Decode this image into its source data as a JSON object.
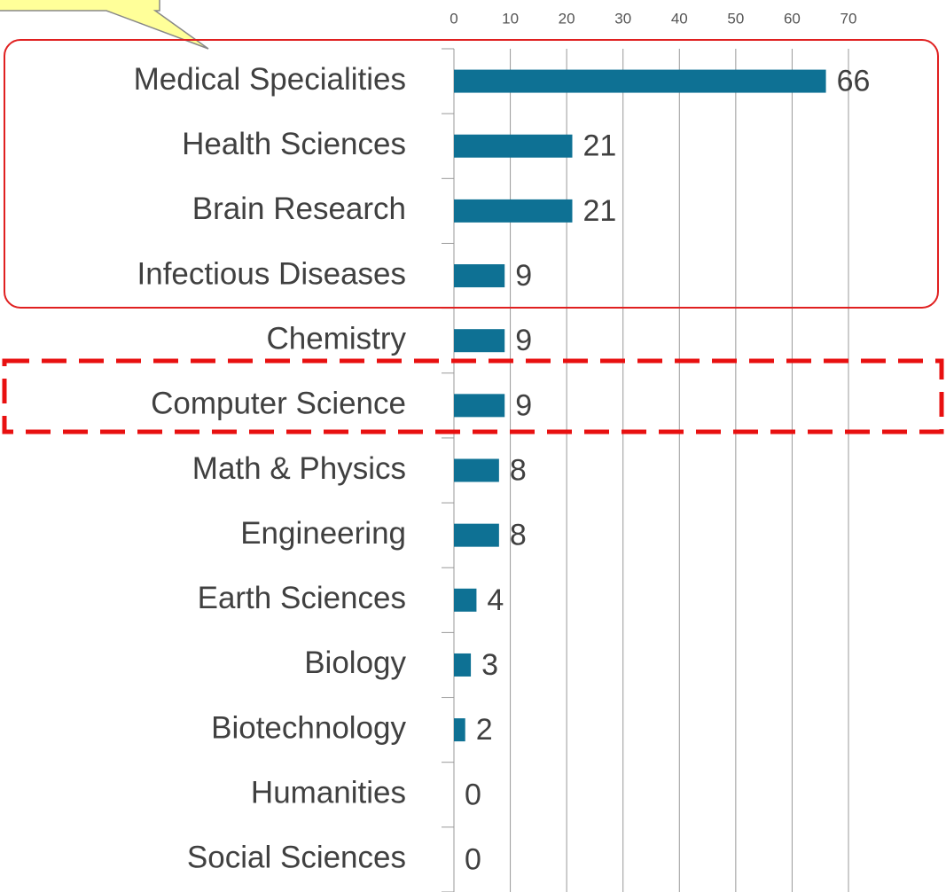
{
  "chart_data": {
    "type": "bar",
    "orientation": "horizontal",
    "categories": [
      "Medical Specialities",
      "Health Sciences",
      "Brain Research",
      "Infectious Diseases",
      "Chemistry",
      "Computer Science",
      "Math & Physics",
      "Engineering",
      "Earth Sciences",
      "Biology",
      "Biotechnology",
      "Humanities",
      "Social Sciences"
    ],
    "values": [
      66,
      21,
      21,
      9,
      9,
      9,
      8,
      8,
      4,
      3,
      2,
      0,
      0
    ],
    "color": "#0e7194",
    "xlim": [
      0,
      70
    ],
    "xticks": [
      0,
      10,
      20,
      30,
      40,
      50,
      60,
      70
    ],
    "grid": true
  }
}
